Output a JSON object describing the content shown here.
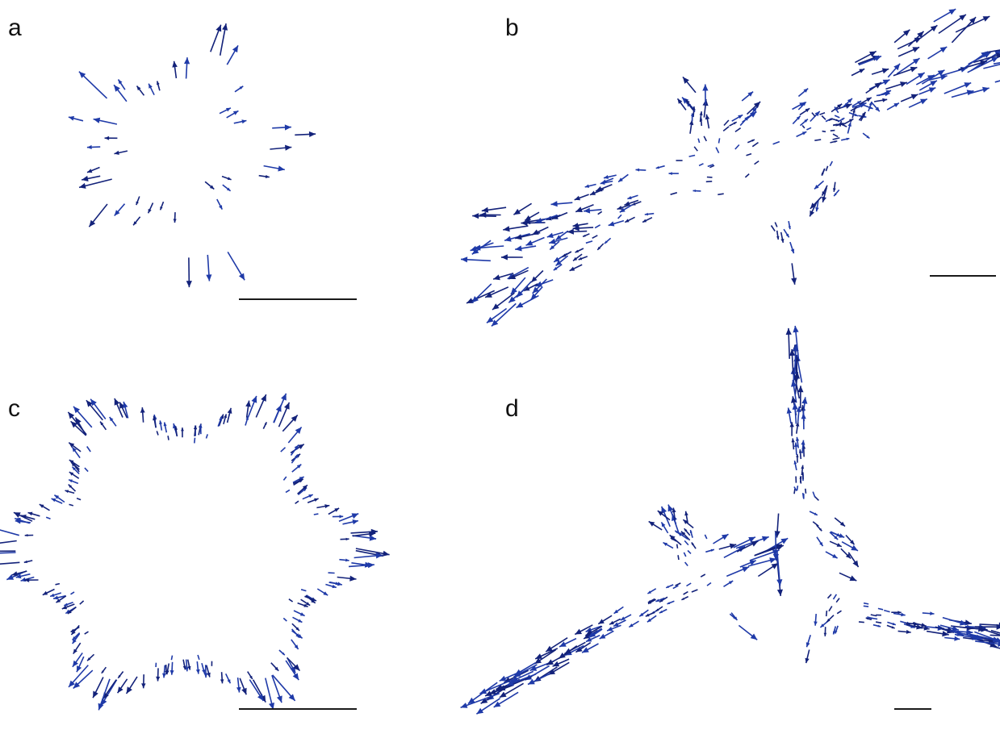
{
  "panels": [
    {
      "label": "a"
    },
    {
      "label": "b"
    },
    {
      "label": "c"
    },
    {
      "label": "d"
    }
  ],
  "colors": {
    "arrow": "#1f3aa8",
    "arrow_dark": "#13227a",
    "scalebar": "#1a1a1a",
    "label": "#111111"
  }
}
